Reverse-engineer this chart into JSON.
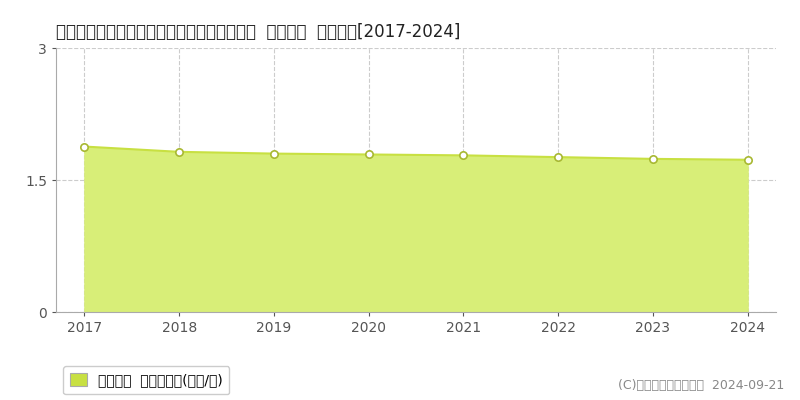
{
  "title": "青森県西津軽郡深浦町大字関字栃沢４８９番  基準地価  地価推移[2017-2024]",
  "years": [
    2017,
    2018,
    2019,
    2020,
    2021,
    2022,
    2023,
    2024
  ],
  "values": [
    1.88,
    1.82,
    1.8,
    1.79,
    1.78,
    1.76,
    1.74,
    1.73
  ],
  "ylim": [
    0,
    3
  ],
  "yticks": [
    0,
    1.5,
    3
  ],
  "line_color": "#c8e042",
  "fill_color": "#d8ee78",
  "marker_edge_color": "#a8b832",
  "marker_face_color": "#ffffff",
  "grid_color": "#cccccc",
  "bg_color": "#ffffff",
  "legend_label": "基準地価  平均坪単価(万円/坪)",
  "legend_marker_color": "#c8e042",
  "copyright_text": "(C)土地価格ドットコム  2024-09-21",
  "title_fontsize": 12,
  "axis_fontsize": 10,
  "legend_fontsize": 10,
  "copyright_fontsize": 9
}
